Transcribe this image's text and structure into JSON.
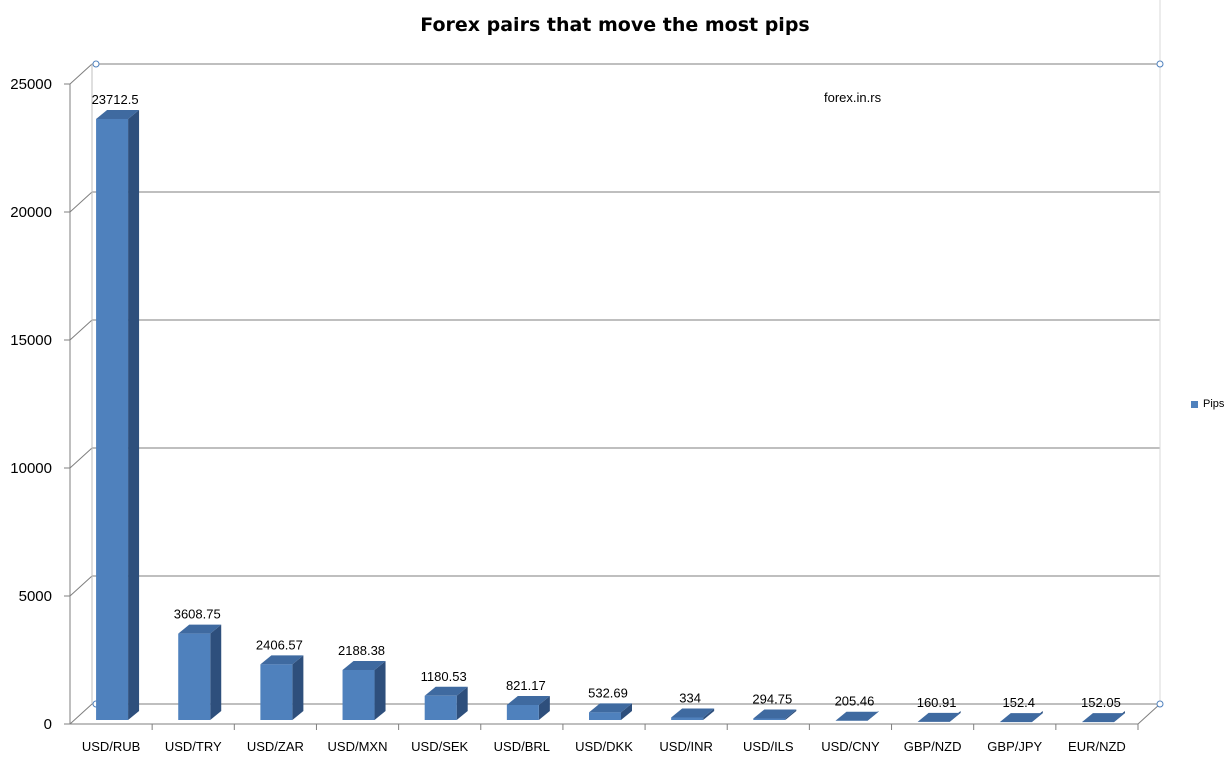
{
  "chart_data": {
    "type": "bar",
    "title": "Forex pairs that move the most pips",
    "watermark": "forex.in.rs",
    "categories": [
      "USD/RUB",
      "USD/TRY",
      "USD/ZAR",
      "USD/MXN",
      "USD/SEK",
      "USD/BRL",
      "USD/DKK",
      "USD/INR",
      "USD/ILS",
      "USD/CNY",
      "GBP/NZD",
      "GBP/JPY",
      "EUR/NZD"
    ],
    "series": [
      {
        "name": "Pips",
        "values": [
          23712.5,
          3608.75,
          2406.57,
          2188.38,
          1180.53,
          821.17,
          532.69,
          334,
          294.75,
          205.46,
          160.91,
          152.4,
          152.05
        ],
        "labels": [
          "23712.5",
          "3608.75",
          "2406.57",
          "2188.38",
          "1180.53",
          "821.17",
          "532.69",
          "334",
          "294.75",
          "205.46",
          "160.91",
          "152.4",
          "152.05"
        ]
      }
    ],
    "yticks": [
      "0",
      "5000",
      "10000",
      "15000",
      "20000",
      "25000"
    ],
    "ylim": [
      0,
      25000
    ],
    "xlabel": "",
    "ylabel": "",
    "grid": true,
    "legend_position": "right",
    "colors": {
      "bar_front": "#4f81bd",
      "bar_side": "#2e4f7c",
      "bar_top": "#3f6aa0",
      "grid": "#7f7f7f"
    }
  }
}
